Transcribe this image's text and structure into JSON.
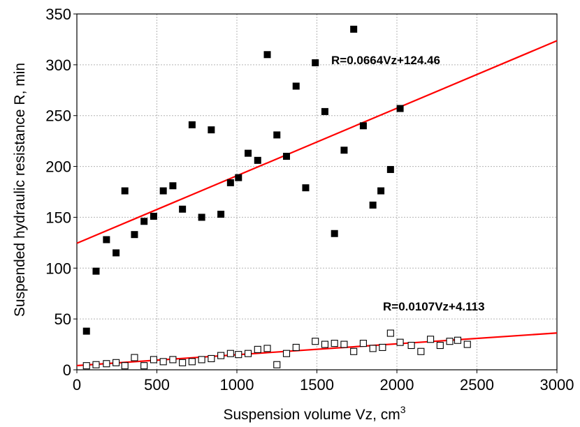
{
  "chart_data": {
    "type": "scatter",
    "title": "",
    "xlabel": "Suspension volume Vz, cm",
    "xlabel_sup": "3",
    "ylabel": "Suspended hydraulic resistance R, min",
    "xlim": [
      0,
      3000
    ],
    "ylim": [
      0,
      350
    ],
    "xticks": [
      0,
      500,
      1000,
      1500,
      2000,
      2500,
      3000
    ],
    "yticks": [
      0,
      50,
      100,
      150,
      200,
      250,
      300,
      350
    ],
    "xtick_labels": [
      "0",
      "500",
      "1000",
      "1500",
      "2000",
      "2500",
      "3000"
    ],
    "ytick_labels": [
      "0",
      "50",
      "100",
      "150",
      "200",
      "250",
      "300",
      "350"
    ],
    "grid": true,
    "colors": {
      "fit_line": "#ff0000",
      "grid": "#b4b4b4",
      "marker": "#000000"
    },
    "series": [
      {
        "marker": "filled-square",
        "points": [
          [
            60,
            38
          ],
          [
            120,
            97
          ],
          [
            185,
            128
          ],
          [
            245,
            115
          ],
          [
            300,
            176
          ],
          [
            360,
            133
          ],
          [
            420,
            146
          ],
          [
            480,
            151
          ],
          [
            540,
            176
          ],
          [
            600,
            181
          ],
          [
            660,
            158
          ],
          [
            720,
            241
          ],
          [
            780,
            150
          ],
          [
            840,
            236
          ],
          [
            900,
            153
          ],
          [
            960,
            184
          ],
          [
            1010,
            189
          ],
          [
            1070,
            213
          ],
          [
            1130,
            206
          ],
          [
            1190,
            310
          ],
          [
            1250,
            231
          ],
          [
            1310,
            210
          ],
          [
            1370,
            279
          ],
          [
            1430,
            179
          ],
          [
            1490,
            302
          ],
          [
            1550,
            254
          ],
          [
            1610,
            134
          ],
          [
            1670,
            216
          ],
          [
            1730,
            335
          ],
          [
            1790,
            240
          ],
          [
            1850,
            162
          ],
          [
            1900,
            176
          ],
          [
            1960,
            197
          ],
          [
            2020,
            257
          ]
        ],
        "fit": {
          "slope": 0.0664,
          "intercept": 124.46,
          "label": "R=0.0664Vz+124.46"
        }
      },
      {
        "marker": "open-square",
        "points": [
          [
            60,
            4
          ],
          [
            120,
            5
          ],
          [
            185,
            6
          ],
          [
            245,
            7
          ],
          [
            300,
            4
          ],
          [
            360,
            12
          ],
          [
            420,
            4
          ],
          [
            480,
            10
          ],
          [
            540,
            8
          ],
          [
            600,
            10
          ],
          [
            660,
            7
          ],
          [
            720,
            8
          ],
          [
            780,
            10
          ],
          [
            840,
            11
          ],
          [
            900,
            14
          ],
          [
            960,
            16
          ],
          [
            1010,
            15
          ],
          [
            1070,
            16
          ],
          [
            1130,
            20
          ],
          [
            1190,
            21
          ],
          [
            1250,
            5
          ],
          [
            1310,
            16
          ],
          [
            1370,
            22
          ],
          [
            1490,
            28
          ],
          [
            1550,
            25
          ],
          [
            1610,
            26
          ],
          [
            1670,
            25
          ],
          [
            1730,
            18
          ],
          [
            1790,
            26
          ],
          [
            1850,
            21
          ],
          [
            1910,
            22
          ],
          [
            1960,
            36
          ],
          [
            2020,
            27
          ],
          [
            2090,
            24
          ],
          [
            2150,
            18
          ],
          [
            2210,
            30
          ],
          [
            2270,
            24
          ],
          [
            2330,
            28
          ],
          [
            2380,
            29
          ],
          [
            2440,
            25
          ]
        ],
        "fit": {
          "slope": 0.0107,
          "intercept": 4.113,
          "label": "R=0.0107Vz+4.113"
        }
      }
    ]
  }
}
